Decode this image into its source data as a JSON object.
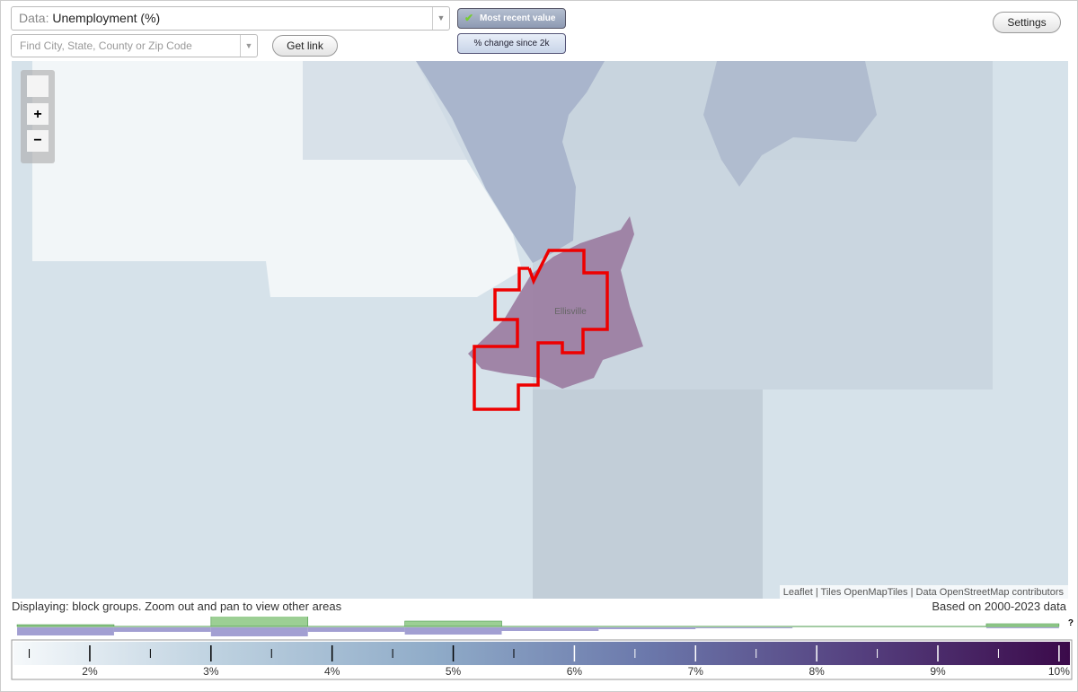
{
  "toolbar": {
    "data_prefix": "Data:",
    "data_value": "Unemployment (%)",
    "search_placeholder": "Find City, State, County or Zip Code",
    "get_link": "Get link",
    "most_recent": "Most recent value",
    "change": "% change since 2k",
    "settings": "Settings"
  },
  "map": {
    "place_label": "Ellisville",
    "attribution": "Leaflet | Tiles OpenMapTiles | Data OpenStreetMap contributors"
  },
  "footer": {
    "displaying": "Displaying: block groups. Zoom out and pan to view other areas",
    "based_on": "Based on 2000-2023 data",
    "help": "?"
  },
  "chart_data": {
    "type": "histogram",
    "bins": [
      1.4,
      2.2,
      3.0,
      3.8,
      4.6,
      5.4,
      6.2,
      7.0,
      7.8,
      8.6,
      9.4,
      10.0
    ],
    "series": [
      {
        "color": "#9ccf94",
        "values": [
          2,
          0,
          13,
          0,
          6,
          0,
          0,
          0,
          0,
          0,
          3
        ]
      },
      {
        "color": "#a29fd2",
        "values": [
          9,
          5,
          10,
          5,
          8,
          4,
          2,
          1,
          0,
          0,
          1
        ]
      }
    ],
    "xlim": [
      1.37,
      10.09
    ],
    "xticks": [
      {
        "value": 2,
        "label": "2%"
      },
      {
        "value": 3,
        "label": "3%"
      },
      {
        "value": 4,
        "label": "4%"
      },
      {
        "value": 5,
        "label": "5%"
      },
      {
        "value": 6,
        "label": "6%"
      },
      {
        "value": 7,
        "label": "7%"
      },
      {
        "value": 8,
        "label": "8%"
      },
      {
        "value": 9,
        "label": "9%"
      },
      {
        "value": 10,
        "label": "10%"
      }
    ],
    "minor_ticks": [
      1.5,
      2.5,
      3.5,
      4.5,
      5.5,
      6.5,
      7.5,
      8.5,
      9.5
    ],
    "gradient_colors": [
      "#f6f9fb",
      "#bcd0df",
      "#8fabc8",
      "#6b78ab",
      "#55407f",
      "#3b0a4a"
    ]
  }
}
